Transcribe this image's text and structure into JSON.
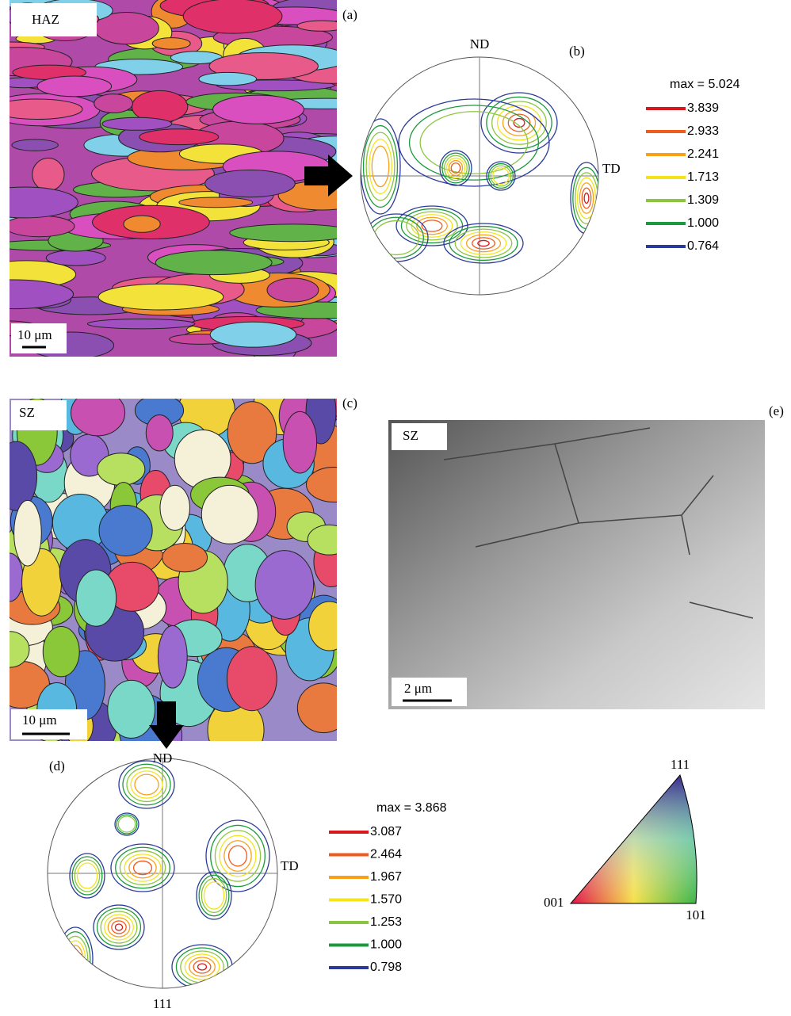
{
  "panel_a": {
    "zone": "HAZ",
    "tag": "(a)",
    "scale": "10 μm"
  },
  "panel_b": {
    "tag": "(b)",
    "top_axis": "ND",
    "right_axis": "TD",
    "max_label": "max = 5.024",
    "levels": [
      {
        "label": "3.839",
        "color": "#d7191c"
      },
      {
        "label": "2.933",
        "color": "#f05a1a"
      },
      {
        "label": "2.241",
        "color": "#f7a11a"
      },
      {
        "label": "1.713",
        "color": "#f2e51b"
      },
      {
        "label": "1.309",
        "color": "#8cc63f"
      },
      {
        "label": "1.000",
        "color": "#1a9a3c"
      },
      {
        "label": "0.764",
        "color": "#2b3a9a"
      }
    ]
  },
  "panel_c": {
    "zone": "SZ",
    "tag": "(c)",
    "scale": "10 μm"
  },
  "panel_e": {
    "zone": "SZ",
    "tag": "(e)",
    "scale": "2 μm"
  },
  "panel_d": {
    "tag": "(d)",
    "top_axis": "ND",
    "right_axis": "TD",
    "bottom_axis": "111",
    "max_label": "max = 3.868",
    "levels": [
      {
        "label": "3.087",
        "color": "#d7191c"
      },
      {
        "label": "2.464",
        "color": "#f05a1a"
      },
      {
        "label": "1.967",
        "color": "#f7a11a"
      },
      {
        "label": "1.570",
        "color": "#f2e51b"
      },
      {
        "label": "1.253",
        "color": "#8cc63f"
      },
      {
        "label": "1.000",
        "color": "#1a9a3c"
      },
      {
        "label": "0.798",
        "color": "#2b3a9a"
      }
    ]
  },
  "ipf_key": {
    "top": "111",
    "left": "001",
    "right": "101"
  }
}
